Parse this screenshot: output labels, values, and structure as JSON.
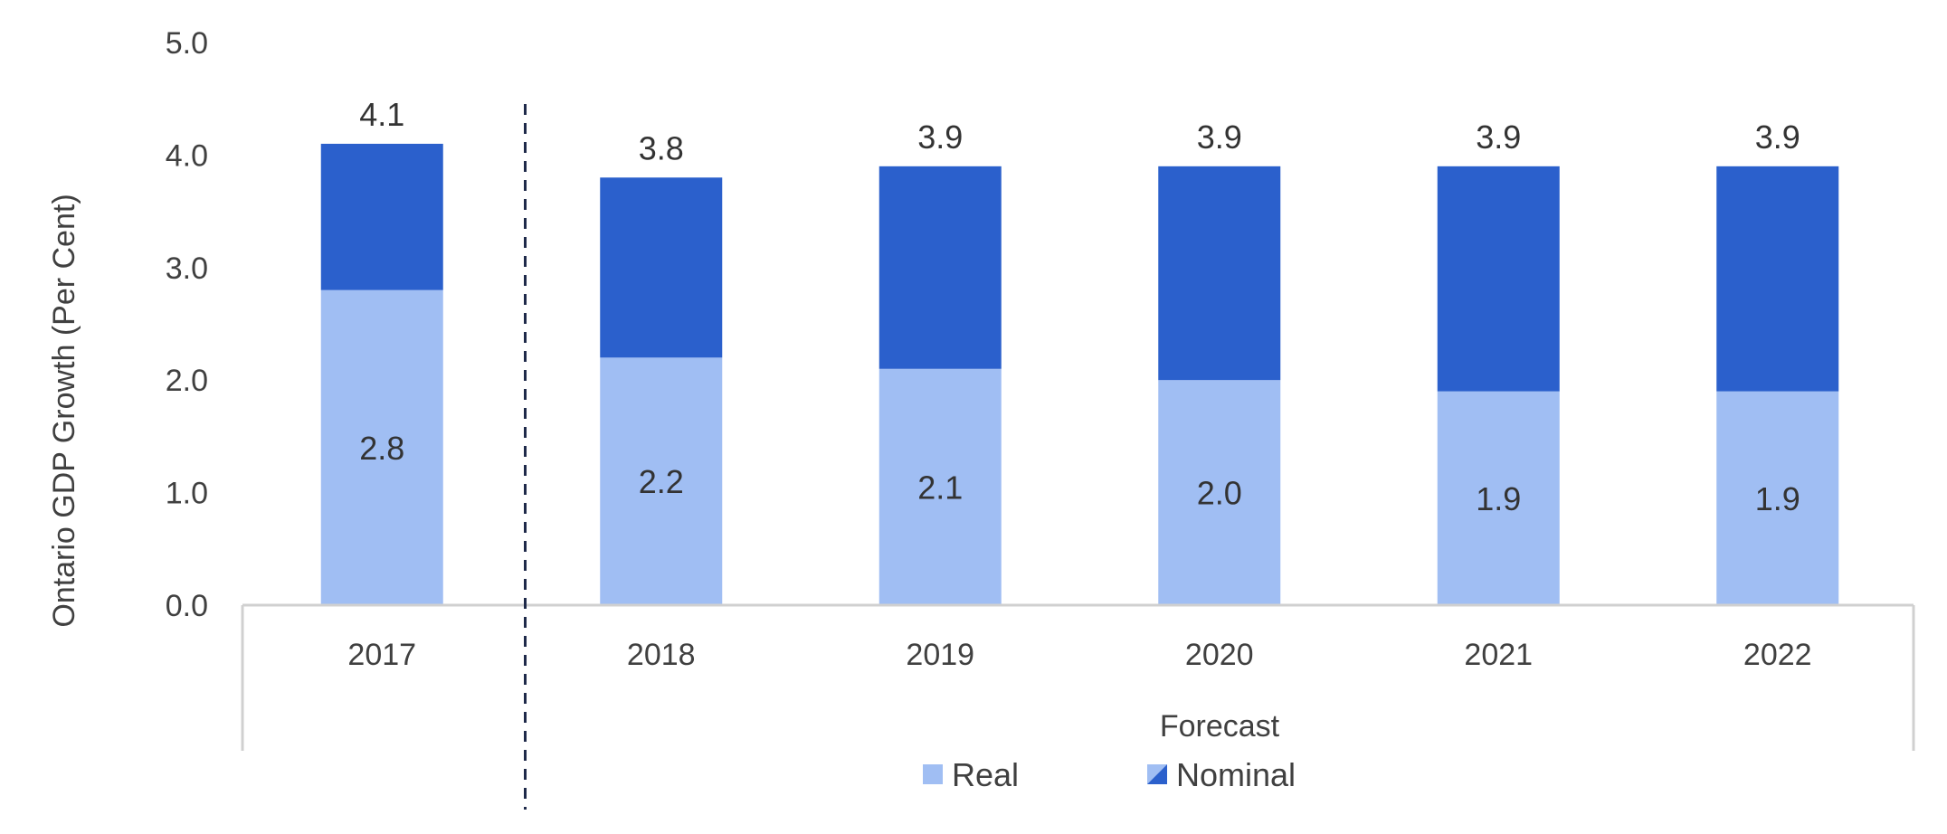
{
  "chart_data": {
    "type": "bar",
    "stacked": true,
    "categories": [
      "2017",
      "2018",
      "2019",
      "2020",
      "2021",
      "2022"
    ],
    "series": [
      {
        "name": "Real",
        "values": [
          2.8,
          2.2,
          2.1,
          2.0,
          1.9,
          1.9
        ],
        "color": "#a0bef3",
        "labels": [
          "2.8",
          "2.2",
          "2.1",
          "2.0",
          "1.9",
          "1.9"
        ]
      },
      {
        "name": "Nominal",
        "values": [
          1.3,
          1.6,
          1.8,
          1.9,
          2.0,
          2.0
        ],
        "color": "#2b60cc",
        "labels": [
          "4.1",
          "3.8",
          "3.9",
          "3.9",
          "3.9",
          "3.9"
        ]
      }
    ],
    "ylabel": "Ontario GDP Growth (Per Cent)",
    "ylim": [
      0,
      5
    ],
    "yticks": [
      "0.0",
      "1.0",
      "2.0",
      "3.0",
      "4.0",
      "5.0"
    ],
    "group_label": "Forecast",
    "forecast_starts_at": "2018",
    "grid": false,
    "legend_position": "bottom"
  }
}
